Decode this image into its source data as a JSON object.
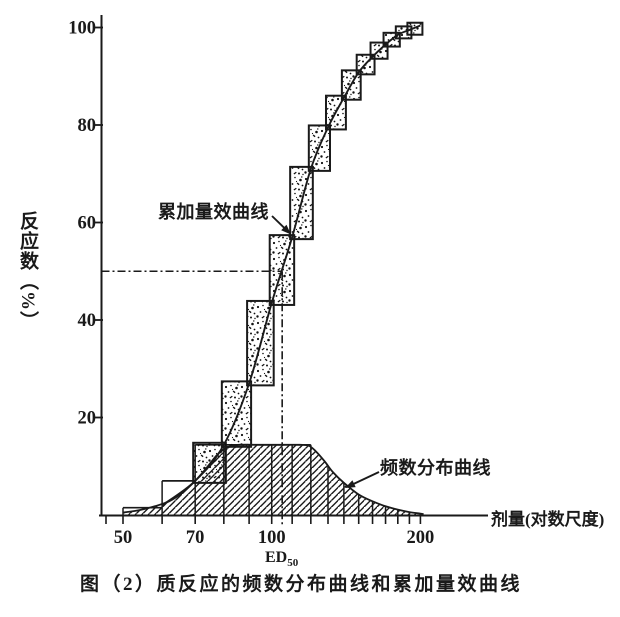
{
  "texts": {
    "caption": "图（2）质反应的频数分布曲线和累加量效曲线",
    "y_axis_label": "反应数（%）",
    "x_axis_label": "剂量(对数尺度)",
    "annotation_cumulative": "累加量效曲线",
    "annotation_frequency": "频数分布曲线",
    "ed50_main": "ED",
    "ed50_sub": "50"
  },
  "colors": {
    "ink": "#1a1a1a",
    "background": "#ffffff"
  },
  "chart_data": {
    "type": "combo",
    "subtypes": [
      "histogram",
      "cumulative-step-curve"
    ],
    "title": "图（2）质反应的频数分布曲线和累加量效曲线",
    "xlabel": "剂量(对数尺度)",
    "ylabel": "反应数（%）",
    "x_scale": "log",
    "x_axis": {
      "minor_tick_doses": [
        50,
        60,
        70,
        80,
        90,
        100,
        110,
        120,
        130,
        140,
        150,
        160,
        170,
        180,
        190,
        200
      ],
      "labeled_ticks": [
        {
          "dose": 50,
          "label": "50"
        },
        {
          "dose": 70,
          "label": "70"
        },
        {
          "dose": 100,
          "label": "100"
        },
        {
          "dose": 200,
          "label": "200"
        }
      ],
      "origin_tick": true
    },
    "y_axis": {
      "ticks": [
        20,
        40,
        60,
        80,
        100
      ],
      "range": [
        0,
        100
      ],
      "unit": "%"
    },
    "bins": [
      {
        "from": 50,
        "to": 60,
        "freq": 2,
        "cum": 2,
        "hist": 1.5,
        "box": false
      },
      {
        "from": 60,
        "to": 70,
        "freq": 5,
        "cum": 7,
        "hist": 7,
        "box": false
      },
      {
        "from": 70,
        "to": 80,
        "freq": 7.4,
        "cum": 14.4,
        "hist": 14.4,
        "box": true
      },
      {
        "from": 80,
        "to": 90,
        "freq": 12.6,
        "cum": 27,
        "hist": 14.4,
        "box": true
      },
      {
        "from": 90,
        "to": 100,
        "freq": 16.5,
        "cum": 43.5,
        "hist": 14.4,
        "box": true
      },
      {
        "from": 100,
        "to": 110,
        "freq": 13.5,
        "cum": 57,
        "hist": 14.4,
        "box": true
      },
      {
        "from": 110,
        "to": 120,
        "freq": 14,
        "cum": 71,
        "hist": 14.4,
        "box": true
      },
      {
        "from": 120,
        "to": 130,
        "freq": 8.5,
        "cum": 79.5,
        "hist": null,
        "box": true
      },
      {
        "from": 130,
        "to": 140,
        "freq": 6.1,
        "cum": 85.6,
        "hist": null,
        "box": true
      },
      {
        "from": 140,
        "to": 150,
        "freq": 5.2,
        "cum": 90.8,
        "hist": null,
        "box": true
      },
      {
        "from": 150,
        "to": 160,
        "freq": 3.2,
        "cum": 94,
        "hist": null,
        "box": true
      },
      {
        "from": 160,
        "to": 170,
        "freq": 2.5,
        "cum": 96.5,
        "hist": null,
        "box": true
      },
      {
        "from": 170,
        "to": 180,
        "freq": 2,
        "cum": 98.5,
        "hist": null,
        "box": true
      },
      {
        "from": 180,
        "to": 190,
        "freq": 1,
        "cum": 99.5,
        "hist": null,
        "box": true
      },
      {
        "from": 190,
        "to": 200,
        "freq": 0.5,
        "cum": 100,
        "hist": null,
        "box": true
      }
    ],
    "freq_curve": [
      [
        50,
        0.5
      ],
      [
        54,
        1
      ],
      [
        58,
        1.8
      ],
      [
        62,
        2.8
      ],
      [
        66,
        4.6
      ],
      [
        70,
        7
      ],
      [
        74,
        9.8
      ],
      [
        78,
        12.6
      ],
      [
        82,
        14
      ],
      [
        86,
        14.4
      ],
      [
        95,
        14.4
      ],
      [
        105,
        14.4
      ],
      [
        114,
        14.4
      ],
      [
        119,
        14.2
      ],
      [
        123,
        13
      ],
      [
        128,
        11
      ],
      [
        133,
        8.8
      ],
      [
        140,
        6.6
      ],
      [
        150,
        4.2
      ],
      [
        160,
        2.8
      ],
      [
        170,
        1.8
      ],
      [
        180,
        1.1
      ],
      [
        190,
        0.6
      ],
      [
        200,
        0.28
      ],
      [
        203,
        0.15
      ]
    ],
    "ed50": {
      "dose_approx": 105,
      "response_pct": 50
    },
    "annotations": [
      {
        "text": "累加量效曲线",
        "points_to": "cumulative curve at ~50-57%"
      },
      {
        "text": "频数分布曲线",
        "points_to": "descending limb of frequency curve"
      }
    ],
    "legend": "none",
    "grid": false
  }
}
